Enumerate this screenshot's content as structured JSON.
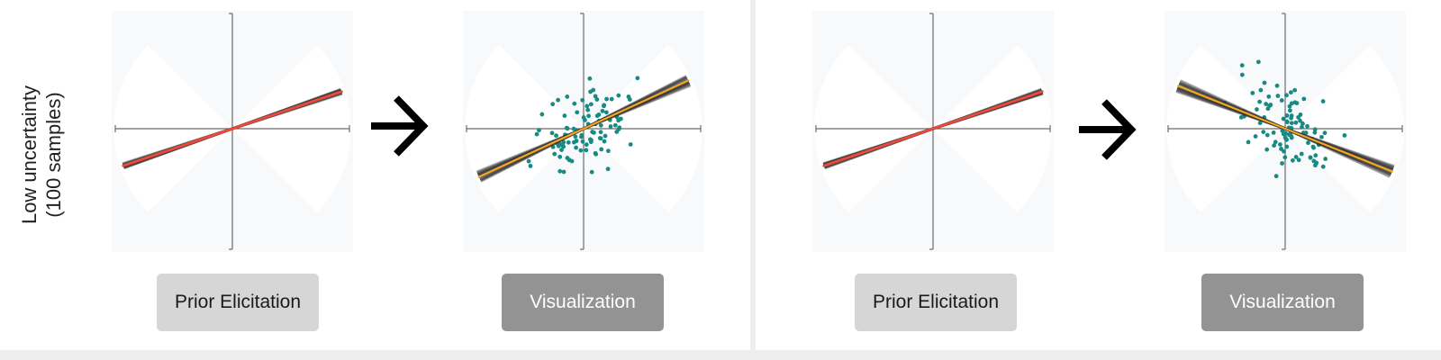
{
  "row_label": {
    "line1": "Low uncertainty",
    "line2": "(100 samples)"
  },
  "buttons": {
    "prior_label": "Prior Elicitation",
    "visualization_label": "Visualization"
  },
  "icons": {
    "arrow": "right-arrow-icon"
  },
  "colors": {
    "panel_background": "#f8f9fb",
    "wedge": "#ffffff",
    "axis": "#6b6b6b",
    "user_line": "#e84a3c",
    "posterior_line": "#f5a623",
    "uncertainty_band": "#333333",
    "data_points": "#178a84",
    "arrow": "#000000"
  },
  "scenarios": [
    {
      "name": "positive-trend",
      "prior_slope": 0.34,
      "posterior_slope": 0.46
    },
    {
      "name": "negative-trend",
      "prior_slope": 0.34,
      "posterior_slope": -0.4
    }
  ]
}
